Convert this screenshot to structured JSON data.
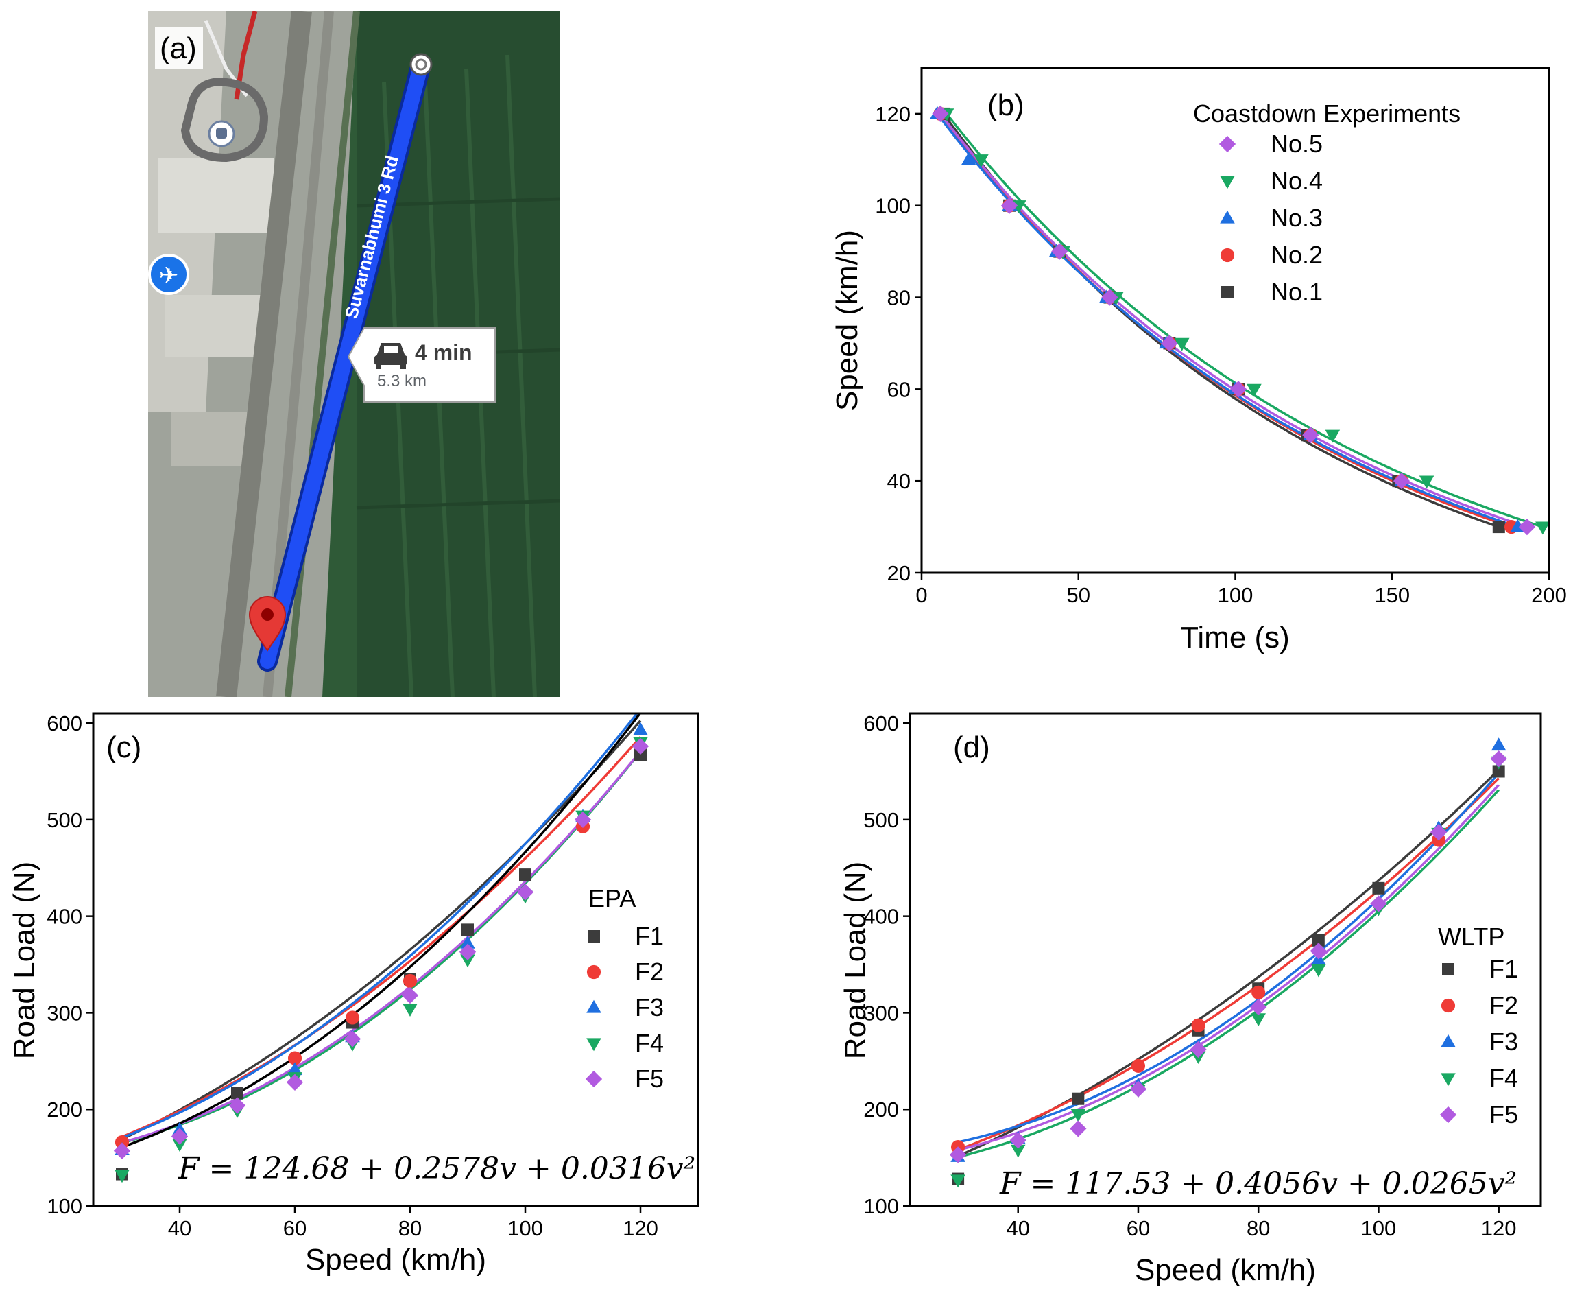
{
  "colors": {
    "No.1": "#3c3c3c",
    "No.2": "#ef3b36",
    "No.3": "#1f6fe0",
    "No.4": "#1aa862",
    "No.5": "#b15ae0",
    "F1": "#3c3c3c",
    "F2": "#ef3b36",
    "F3": "#1f6fe0",
    "F4": "#1aa862",
    "F5": "#b15ae0",
    "fit_black": "#000000",
    "route": "#1f4ef5",
    "pin": "#e53935"
  },
  "panel_a": {
    "label": "(a)",
    "road_label": "Suvarnabhumi 3 Rd",
    "duration": "4 min",
    "distance": "5.3 km",
    "icons": [
      "car-icon",
      "airplane-icon",
      "train-station-icon",
      "map-pin-icon",
      "route-start-icon"
    ]
  },
  "chart_data": [
    {
      "id": "b",
      "type": "scatter",
      "panel_label": "(b)",
      "title": "",
      "xlabel": "Time (s)",
      "ylabel": "Speed (km/h)",
      "xlim": [
        0,
        200
      ],
      "ylim": [
        20,
        130
      ],
      "xticks": [
        0,
        50,
        100,
        150,
        200
      ],
      "yticks": [
        20,
        40,
        60,
        80,
        100,
        120
      ],
      "legend_title": "Coastdown Experiments",
      "legend_position": "top-right",
      "legend_order": [
        "No.5",
        "No.4",
        "No.3",
        "No.2",
        "No.1"
      ],
      "series": [
        {
          "name": "No.1",
          "marker": "square",
          "x": [
            7,
            28,
            44,
            60,
            79,
            101,
            123,
            152,
            184
          ],
          "y": [
            120,
            100,
            90,
            80,
            70,
            60,
            50,
            40,
            30
          ]
        },
        {
          "name": "No.2",
          "marker": "circle",
          "x": [
            6,
            28,
            44,
            60,
            79,
            101,
            124,
            153,
            188
          ],
          "y": [
            120,
            100,
            90,
            80,
            70,
            60,
            50,
            40,
            30
          ]
        },
        {
          "name": "No.3",
          "marker": "triangle-up",
          "x": [
            5,
            15,
            28,
            43,
            59,
            78,
            100,
            124,
            153,
            190
          ],
          "y": [
            120,
            110,
            100,
            90,
            80,
            70,
            60,
            50,
            40,
            30
          ]
        },
        {
          "name": "No.4",
          "marker": "triangle-down",
          "x": [
            8,
            19,
            31,
            45,
            62,
            83,
            106,
            131,
            161,
            198
          ],
          "y": [
            120,
            110,
            100,
            90,
            80,
            70,
            60,
            50,
            40,
            30
          ]
        },
        {
          "name": "No.5",
          "marker": "diamond",
          "x": [
            6,
            28,
            44,
            60,
            79,
            101,
            124,
            153,
            193
          ],
          "y": [
            120,
            100,
            90,
            80,
            70,
            60,
            50,
            40,
            30
          ]
        }
      ]
    },
    {
      "id": "c",
      "type": "scatter",
      "panel_label": "(c)",
      "title": "",
      "xlabel": "Speed (km/h)",
      "ylabel": "Road Load (N)",
      "xlim": [
        25,
        130
      ],
      "ylim": [
        100,
        610
      ],
      "xticks": [
        40,
        60,
        80,
        100,
        120
      ],
      "yticks": [
        100,
        200,
        300,
        400,
        500,
        600
      ],
      "legend_title": "EPA",
      "legend_position": "center-right",
      "legend_order": [
        "F1",
        "F2",
        "F3",
        "F4",
        "F5"
      ],
      "equation": "F = 124.68 + 0.2578v + 0.0316v²",
      "overall_fit": {
        "a": 124.68,
        "b": 0.2578,
        "c": 0.0316
      },
      "series": [
        {
          "name": "F1",
          "marker": "square",
          "x": [
            30,
            50,
            70,
            80,
            90,
            100,
            120
          ],
          "y": [
            133,
            217,
            290,
            335,
            386,
            443,
            567
          ]
        },
        {
          "name": "F2",
          "marker": "circle",
          "x": [
            30,
            60,
            70,
            80,
            110
          ],
          "y": [
            166,
            253,
            295,
            333,
            493
          ]
        },
        {
          "name": "F3",
          "marker": "triangle-up",
          "x": [
            30,
            40,
            60,
            70,
            90,
            110,
            120
          ],
          "y": [
            158,
            179,
            241,
            275,
            372,
            503,
            593
          ]
        },
        {
          "name": "F4",
          "marker": "triangle-down",
          "x": [
            30,
            40,
            50,
            60,
            70,
            80,
            90,
            100,
            110,
            120
          ],
          "y": [
            132,
            164,
            199,
            233,
            268,
            304,
            355,
            421,
            504,
            580
          ]
        },
        {
          "name": "F5",
          "marker": "diamond",
          "x": [
            30,
            40,
            50,
            60,
            70,
            80,
            90,
            100,
            110,
            120
          ],
          "y": [
            157,
            172,
            204,
            228,
            273,
            318,
            363,
            425,
            500,
            576
          ]
        }
      ],
      "fits": [
        {
          "name": "F1",
          "a": 105,
          "b": 1.47,
          "c": 0.0223
        },
        {
          "name": "F2",
          "a": 120,
          "b": 1.0,
          "c": 0.024
        },
        {
          "name": "F3",
          "a": 128,
          "b": 0.55,
          "c": 0.0292
        },
        {
          "name": "F4",
          "a": 150,
          "b": -0.48,
          "c": 0.0332
        },
        {
          "name": "F5",
          "a": 146,
          "b": -0.3,
          "c": 0.032
        }
      ]
    },
    {
      "id": "d",
      "type": "scatter",
      "panel_label": "(d)",
      "title": "",
      "xlabel": "Speed (km/h)",
      "ylabel": "Road Load (N)",
      "xlim": [
        22,
        127
      ],
      "ylim": [
        100,
        610
      ],
      "xticks": [
        40,
        60,
        80,
        100,
        120
      ],
      "yticks": [
        100,
        200,
        300,
        400,
        500,
        600
      ],
      "legend_title": "WLTP",
      "legend_position": "lower-right",
      "legend_order": [
        "F1",
        "F2",
        "F3",
        "F4",
        "F5"
      ],
      "equation": "F = 117.53 + 0.4056v + 0.0265v²",
      "overall_fit": {
        "a": 117.53,
        "b": 0.4056,
        "c": 0.0265
      },
      "series": [
        {
          "name": "F1",
          "marker": "square",
          "x": [
            30,
            50,
            70,
            80,
            90,
            100,
            120
          ],
          "y": [
            128,
            211,
            282,
            325,
            375,
            429,
            550
          ]
        },
        {
          "name": "F2",
          "marker": "circle",
          "x": [
            30,
            60,
            70,
            80,
            110
          ],
          "y": [
            161,
            245,
            287,
            321,
            479
          ]
        },
        {
          "name": "F3",
          "marker": "triangle-up",
          "x": [
            30,
            40,
            60,
            70,
            90,
            110,
            120
          ],
          "y": [
            151,
            170,
            225,
            265,
            355,
            491,
            577
          ]
        },
        {
          "name": "F4",
          "marker": "triangle-down",
          "x": [
            30,
            40,
            50,
            60,
            70,
            80,
            90,
            100,
            110,
            120
          ],
          "y": [
            127,
            158,
            195,
            220,
            255,
            294,
            345,
            408,
            486,
            560
          ]
        },
        {
          "name": "F5",
          "marker": "diamond",
          "x": [
            30,
            40,
            50,
            60,
            70,
            80,
            90,
            100,
            110,
            120
          ],
          "y": [
            153,
            168,
            180,
            221,
            262,
            306,
            364,
            413,
            487,
            563
          ]
        }
      ],
      "fits": [
        {
          "name": "F1",
          "a": 84,
          "b": 1.7,
          "c": 0.0183
        },
        {
          "name": "F2",
          "a": 108,
          "b": 1.02,
          "c": 0.0217
        },
        {
          "name": "F3",
          "a": 155,
          "b": -0.6,
          "c": 0.0323
        },
        {
          "name": "F4",
          "a": 130,
          "b": -0.2,
          "c": 0.0295
        },
        {
          "name": "F5",
          "a": 140,
          "b": -0.3,
          "c": 0.03
        }
      ]
    }
  ]
}
